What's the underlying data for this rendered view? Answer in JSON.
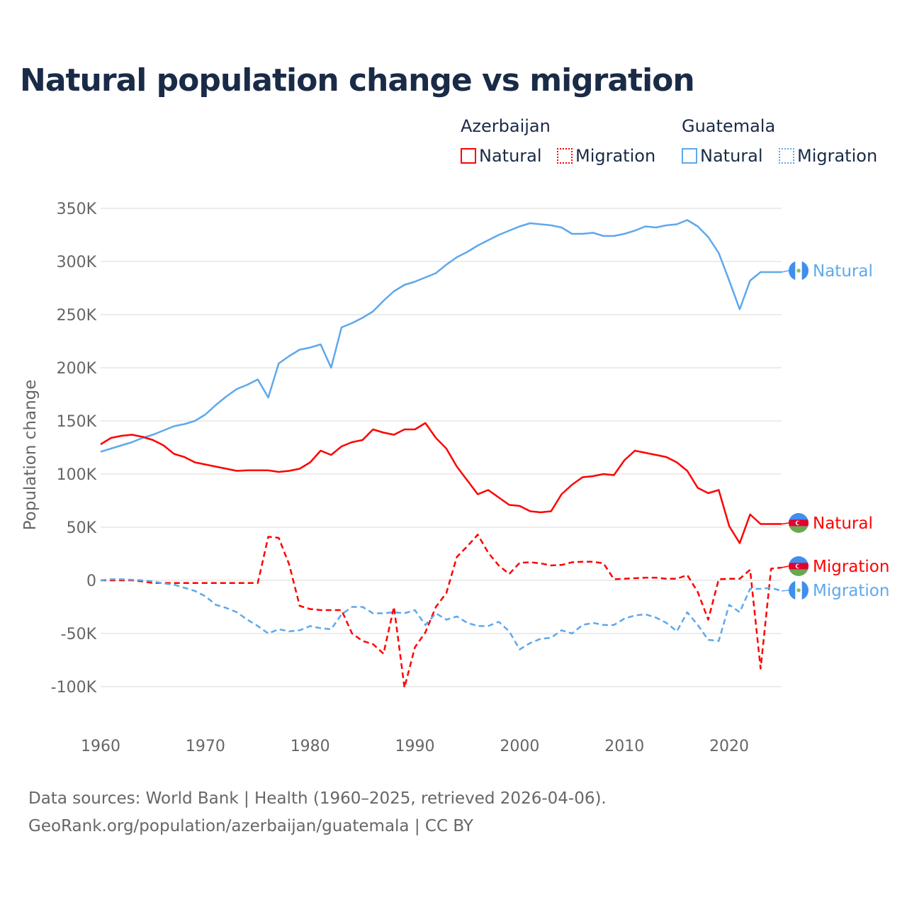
{
  "title": "Natural population change vs migration",
  "legend": {
    "groups": [
      {
        "name": "Azerbaijan",
        "items": [
          {
            "label": "Natural",
            "style": "solid",
            "color": "#ff0000"
          },
          {
            "label": "Migration",
            "style": "dotted",
            "color": "#ff0000"
          }
        ]
      },
      {
        "name": "Guatemala",
        "items": [
          {
            "label": "Natural",
            "style": "solid",
            "color": "#5ea8ec"
          },
          {
            "label": "Migration",
            "style": "dotted",
            "color": "#5ea8ec"
          }
        ]
      }
    ]
  },
  "footer": {
    "line1": "Data sources: World Bank | Health (1960–2025, retrieved 2026-04-06).",
    "line2": "GeoRank.org/population/azerbaijan/guatemala | CC BY"
  },
  "chart_data": {
    "type": "line",
    "title": "Natural population change vs migration",
    "xlabel": "",
    "ylabel": "Population change",
    "xlim": [
      1960,
      2025
    ],
    "ylim": [
      -100000,
      350000
    ],
    "xticks": [
      1960,
      1970,
      1980,
      1990,
      2000,
      2010,
      2020
    ],
    "yticks": [
      -100000,
      -50000,
      0,
      50000,
      100000,
      150000,
      200000,
      250000,
      300000,
      350000
    ],
    "ytick_labels": [
      "-100K",
      "-50K",
      "0",
      "50K",
      "100K",
      "150K",
      "200K",
      "250K",
      "300K",
      "350K"
    ],
    "grid": true,
    "legend_position": "top-right",
    "x_start": 1960,
    "series": [
      {
        "name": "Guatemala Natural",
        "end_label": "Natural",
        "color": "#5ea8ec",
        "dash": false,
        "flag": "guatemala",
        "values": [
          121,
          124,
          127,
          130,
          134,
          137,
          141,
          145,
          147,
          150,
          156,
          165,
          173,
          180,
          184,
          189,
          172,
          204,
          211,
          217,
          219,
          222,
          200,
          238,
          242,
          247,
          253,
          263,
          272,
          278,
          281,
          285,
          289,
          297,
          304,
          309,
          315,
          320,
          325,
          329,
          333,
          336,
          335,
          334,
          332,
          326,
          326,
          327,
          324,
          324,
          326,
          329,
          333,
          332,
          334,
          335,
          339,
          333,
          323,
          308,
          282,
          255,
          282,
          290,
          290,
          290
        ]
      },
      {
        "name": "Azerbaijan Natural",
        "end_label": "Natural",
        "color": "#ff0000",
        "dash": false,
        "flag": "azerbaijan",
        "values": [
          128,
          134,
          136,
          137,
          135,
          132,
          127,
          119,
          116,
          111,
          109,
          107,
          105,
          103,
          103.5,
          103.5,
          103.5,
          102,
          103,
          105,
          111,
          122,
          118,
          126,
          130,
          132,
          142,
          139,
          137,
          142,
          142,
          148,
          134,
          124,
          107,
          94,
          81,
          85,
          78,
          71,
          70,
          65,
          64,
          65,
          81,
          90,
          97,
          98,
          100,
          99,
          113,
          122,
          120,
          118,
          116,
          111,
          103,
          87,
          82,
          85,
          51,
          35,
          62,
          53,
          53,
          53
        ]
      },
      {
        "name": "Azerbaijan Migration",
        "end_label": "Migration",
        "color": "#ff0000",
        "dash": true,
        "flag": "azerbaijan",
        "values": [
          0,
          0,
          0,
          0,
          -1,
          -2.5,
          -2.5,
          -2.5,
          -2.5,
          -2.5,
          -2.5,
          -2.5,
          -2.5,
          -2.5,
          -2.5,
          -2.5,
          41,
          40,
          15,
          -24,
          -27,
          -28,
          -28,
          -28,
          -50,
          -57,
          -60,
          -69,
          -25,
          -101,
          -63,
          -49,
          -25,
          -12,
          22,
          32,
          43,
          26,
          14,
          6,
          16.5,
          17,
          16,
          14,
          14.5,
          17,
          17.5,
          17.5,
          16,
          1,
          1.5,
          2,
          2.5,
          2.5,
          1.5,
          1.5,
          5,
          -11,
          -37,
          1,
          1.5,
          1.5,
          10,
          -83,
          11,
          12
        ]
      },
      {
        "name": "Guatemala Migration",
        "end_label": "Migration",
        "color": "#5ea8ec",
        "dash": true,
        "flag": "guatemala",
        "values": [
          0,
          1,
          1,
          0.5,
          0,
          -1,
          -3,
          -4,
          -7,
          -10,
          -15,
          -23,
          -26,
          -30,
          -37,
          -43,
          -50,
          -46,
          -48,
          -47,
          -43,
          -45,
          -46,
          -32,
          -25,
          -25,
          -31,
          -31,
          -30,
          -31,
          -28,
          -42,
          -31,
          -37,
          -34,
          -40,
          -43,
          -43,
          -39,
          -48,
          -65,
          -59,
          -55,
          -54,
          -47,
          -50,
          -42,
          -40,
          -42,
          -42,
          -36,
          -33,
          -32,
          -35,
          -40,
          -48,
          -30,
          -42,
          -56,
          -57,
          -23,
          -30,
          -8,
          -8,
          -7,
          -10
        ]
      }
    ],
    "value_unit": "thousands"
  }
}
